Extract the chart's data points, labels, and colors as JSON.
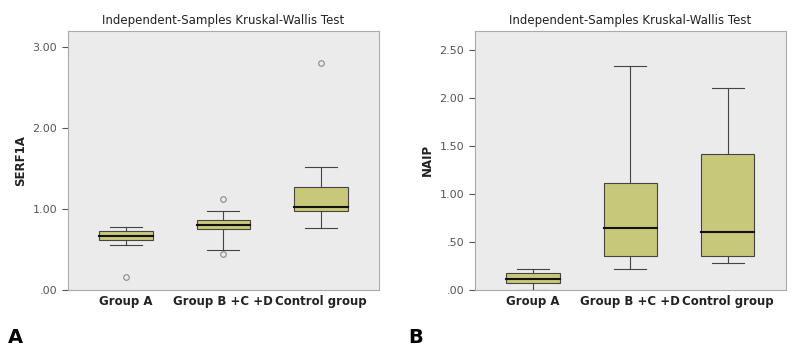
{
  "title": "Independent-Samples Kruskal-Wallis Test",
  "bg_color": "#ebebeb",
  "box_color": "#c8c87a",
  "box_edge_color": "#444444",
  "median_color": "#111111",
  "whisker_color": "#444444",
  "flier_color": "#888888",
  "spine_color": "#aaaaaa",
  "left": {
    "ylabel": "SERF1A",
    "ylim": [
      0.0,
      3.2
    ],
    "yticks": [
      0.0,
      1.0,
      2.0,
      3.0
    ],
    "yticklabels": [
      ".00",
      "1.00",
      "2.00",
      "3.00"
    ],
    "groups": [
      "Group A",
      "Group B +C +D",
      "Control group"
    ],
    "boxes": [
      {
        "q1": 0.62,
        "median": 0.67,
        "q3": 0.73,
        "whislo": 0.55,
        "whishi": 0.78,
        "fliers": [
          0.16
        ]
      },
      {
        "q1": 0.75,
        "median": 0.8,
        "q3": 0.87,
        "whislo": 0.5,
        "whishi": 0.97,
        "fliers": [
          0.45,
          1.12
        ]
      },
      {
        "q1": 0.97,
        "median": 1.03,
        "q3": 1.27,
        "whislo": 0.77,
        "whishi": 1.52,
        "fliers": [
          2.8
        ]
      }
    ]
  },
  "right": {
    "ylabel": "NAIP",
    "ylim": [
      0.0,
      2.7
    ],
    "yticks": [
      0.0,
      0.5,
      1.0,
      1.5,
      2.0,
      2.5
    ],
    "yticklabels": [
      ".00",
      ".50",
      "1.00",
      "1.50",
      "2.00",
      "2.50"
    ],
    "groups": [
      "Group A",
      "Group B +C +D",
      "Control group"
    ],
    "boxes": [
      {
        "q1": 0.07,
        "median": 0.12,
        "q3": 0.18,
        "whislo": 0.0,
        "whishi": 0.22,
        "fliers": []
      },
      {
        "q1": 0.35,
        "median": 0.65,
        "q3": 1.12,
        "whislo": 0.22,
        "whishi": 2.33,
        "fliers": []
      },
      {
        "q1": 0.35,
        "median": 0.6,
        "q3": 1.42,
        "whislo": 0.28,
        "whishi": 2.1,
        "fliers": []
      }
    ]
  }
}
